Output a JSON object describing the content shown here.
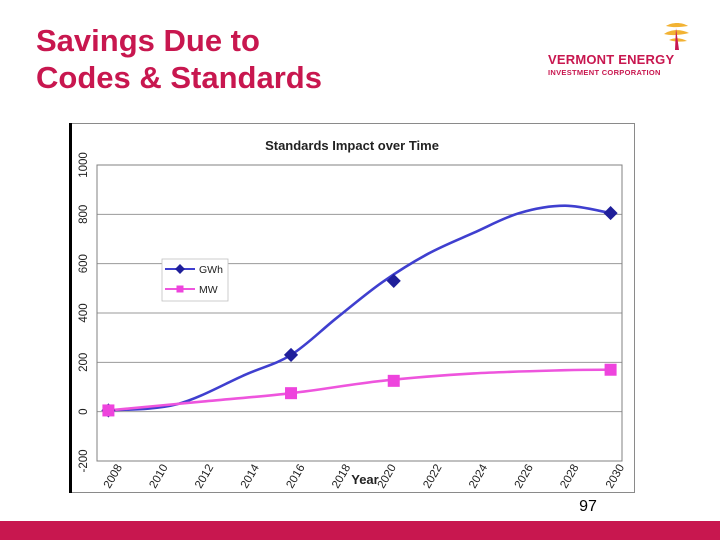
{
  "slide": {
    "title_line1": "Savings Due to",
    "title_line2": "Codes & Standards",
    "page_number": "97"
  },
  "logo": {
    "line1": "VERMONT ENERGY",
    "line2": "INVESTMENT CORPORATION"
  },
  "colors": {
    "accent": "#c8174f",
    "gwh_line": "#3f3fcf",
    "gwh_marker": "#1f1f9a",
    "mw_line": "#ee55dd",
    "mw_marker": "#ee44dd",
    "logo_gold": "#f2b233"
  },
  "chart_data": {
    "type": "line",
    "title": "Standards Impact over Time",
    "xlabel": "Year",
    "ylabel": "",
    "xlim": [
      2007.5,
      2030.5
    ],
    "ylim": [
      -200,
      1000
    ],
    "y_ticks": [
      -200,
      0,
      200,
      400,
      600,
      800,
      1000
    ],
    "y_tick_labels": [
      "-200",
      "0",
      "200",
      "400",
      "600",
      "800",
      "1000"
    ],
    "x_ticks": [
      2008,
      2010,
      2012,
      2014,
      2016,
      2018,
      2020,
      2022,
      2024,
      2026,
      2028,
      2030
    ],
    "x_tick_labels": [
      "2008",
      "2010",
      "2012",
      "2014",
      "2016",
      "2018",
      "2020",
      "2022",
      "2024",
      "2026",
      "2028",
      "2030"
    ],
    "legend_position": "left",
    "series": [
      {
        "name": "GWh",
        "x": [
          2008,
          2011,
          2014,
          2016,
          2018,
          2020,
          2022,
          2024,
          2026,
          2028,
          2030
        ],
        "y": [
          5,
          30,
          150,
          230,
          380,
          525,
          640,
          725,
          805,
          835,
          805
        ],
        "markers_x": [
          2008,
          2016,
          2020.5,
          2030
        ],
        "markers_y": [
          5,
          230,
          530,
          805
        ]
      },
      {
        "name": "MW",
        "x": [
          2008,
          2012,
          2016,
          2020,
          2024,
          2028,
          2030
        ],
        "y": [
          5,
          40,
          75,
          125,
          155,
          168,
          170
        ],
        "markers_x": [
          2008,
          2016,
          2020.5,
          2030
        ],
        "markers_y": [
          5,
          75,
          125,
          170
        ]
      }
    ]
  }
}
